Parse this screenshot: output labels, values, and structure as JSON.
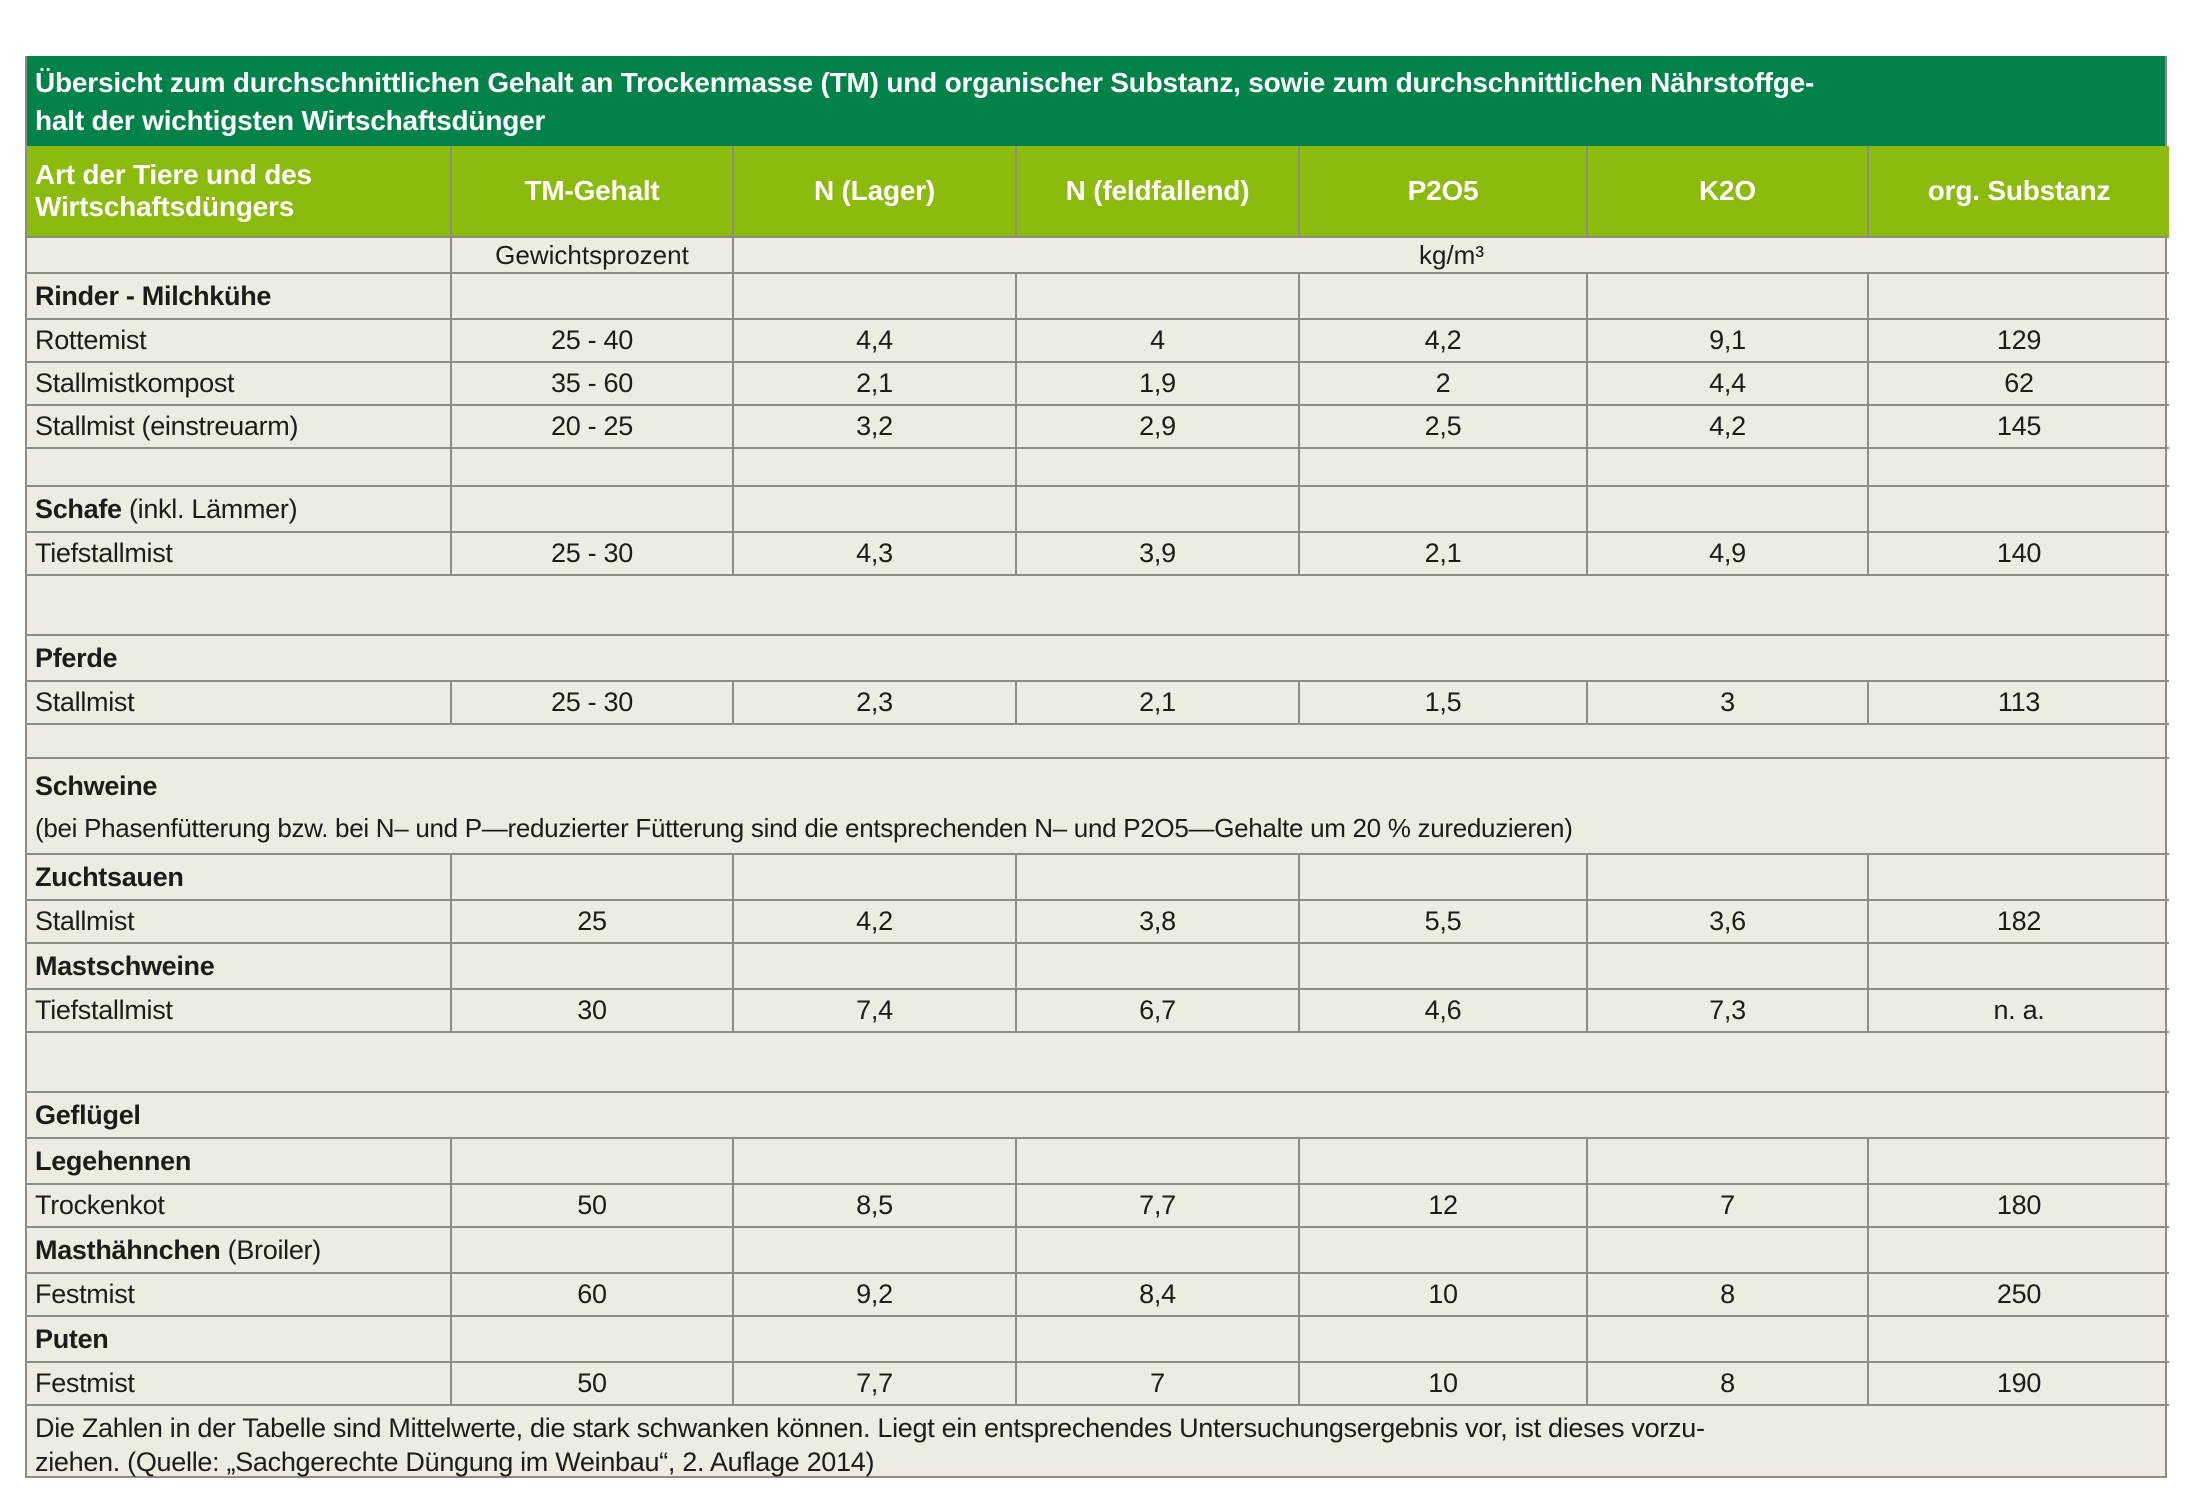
{
  "title": {
    "line1": "Übersicht zum durchschnittlichen Gehalt an Trockenmasse (TM) und organischer Substanz, sowie zum durchschnittlichen Nährstoffge-",
    "line2": "halt der wichtigsten Wirtschaftsdünger"
  },
  "columns": [
    {
      "label": "Art der Tiere und des Wirtschaftsdüngers"
    },
    {
      "label": "TM-Gehalt"
    },
    {
      "label": "N (Lager)"
    },
    {
      "label": "N (feldfallend)"
    },
    {
      "label": "P2O5"
    },
    {
      "label": "K2O"
    },
    {
      "label": "org. Substanz"
    }
  ],
  "units": {
    "weight": "Gewichtsprozent",
    "volume": "kg/m³"
  },
  "rows": [
    {
      "type": "section-cells",
      "label": "Rinder - Milchkühe",
      "suffix": ""
    },
    {
      "type": "data",
      "label": "Rottemist",
      "values": [
        "25 - 40",
        "4,4",
        "4",
        "4,2",
        "9,1",
        "129"
      ]
    },
    {
      "type": "data",
      "label": "Stallmistkompost",
      "values": [
        "35 - 60",
        "2,1",
        "1,9",
        "2",
        "4,4",
        "62"
      ]
    },
    {
      "type": "data",
      "label": "Stallmist (einstreuarm)",
      "values": [
        "20 - 25",
        "3,2",
        "2,9",
        "2,5",
        "4,2",
        "145"
      ]
    },
    {
      "type": "spacer-cells"
    },
    {
      "type": "section-cells",
      "label": "Schafe",
      "suffix": " (inkl. Lämmer)"
    },
    {
      "type": "data",
      "label": "Tiefstallmist",
      "values": [
        "25 - 30",
        "4,3",
        "3,9",
        "2,1",
        "4,9",
        "140"
      ]
    },
    {
      "type": "spacer-full",
      "size": "tall"
    },
    {
      "type": "section-full",
      "label": "Pferde"
    },
    {
      "type": "data",
      "label": "Stallmist",
      "values": [
        "25 - 30",
        "2,3",
        "2,1",
        "1,5",
        "3",
        "113"
      ]
    },
    {
      "type": "spacer-full",
      "size": "small"
    },
    {
      "type": "section-note",
      "label": "Schweine",
      "note": "(bei Phasenfütterung bzw. bei N– und P—reduzierter Fütterung sind die entsprechenden N– und P2O5—Gehalte um 20 % zureduzieren)"
    },
    {
      "type": "section-cells",
      "label": "Zuchtsauen",
      "suffix": ""
    },
    {
      "type": "data",
      "label": "Stallmist",
      "values": [
        "25",
        "4,2",
        "3,8",
        "5,5",
        "3,6",
        "182"
      ]
    },
    {
      "type": "section-cells",
      "label": "Mastschweine",
      "suffix": ""
    },
    {
      "type": "data",
      "label": "Tiefstallmist",
      "values": [
        "30",
        "7,4",
        "6,7",
        "4,6",
        "7,3",
        "n. a."
      ]
    },
    {
      "type": "spacer-full",
      "size": "tall"
    },
    {
      "type": "section-full",
      "label": "Geflügel"
    },
    {
      "type": "section-cells",
      "label": "Legehennen",
      "suffix": ""
    },
    {
      "type": "data",
      "label": "Trockenkot",
      "values": [
        "50",
        "8,5",
        "7,7",
        "12",
        "7",
        "180"
      ]
    },
    {
      "type": "section-cells",
      "label": "Masthähnchen",
      "suffix": " (Broiler)"
    },
    {
      "type": "data",
      "label": "Festmist",
      "values": [
        "60",
        "9,2",
        "8,4",
        "10",
        "8",
        "250"
      ]
    },
    {
      "type": "section-cells",
      "label": "Puten",
      "suffix": ""
    },
    {
      "type": "data",
      "label": "Festmist",
      "values": [
        "50",
        "7,7",
        "7",
        "10",
        "8",
        "190"
      ]
    }
  ],
  "footer": {
    "line1": "Die Zahlen in der Tabelle sind Mittelwerte, die stark schwanken können. Liegt ein entsprechendes Untersuchungsergebnis vor, ist dieses vorzu-",
    "line2": "ziehen. (Quelle: „Sachgerechte Düngung im Weinbau“, 2. Auflage 2014)"
  },
  "colors": {
    "title_bg": "#008249",
    "header_bg": "#8cba0d",
    "body_bg": "#eeebe1",
    "grid": "#8d8c85",
    "header_text": "#ffffff",
    "body_text": "#1c1c1a"
  }
}
